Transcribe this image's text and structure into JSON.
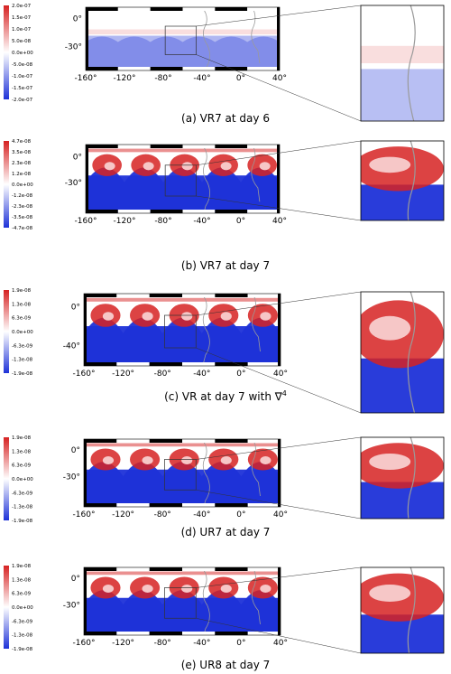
{
  "colors": {
    "high": "#d62222",
    "mid": "#ffffff",
    "low": "#1e32d8",
    "coast": "#9a9a9a",
    "frame": "#000000"
  },
  "x_ticks": [
    "-160°",
    "-120°",
    "-80°",
    "-40°",
    "0°",
    "40°"
  ],
  "panels": [
    {
      "caption": "(a) VR7 at day 6",
      "y_ticks": [
        "0°",
        "-30°"
      ],
      "colorbar_labels": [
        "2.0e-07",
        "1.5e-07",
        "1.0e-07",
        "5.0e-08",
        "0.0e+00",
        "-5.0e-08",
        "-1.0e-07",
        "-1.5e-07",
        "-2.0e-07"
      ],
      "intensity": 0.25
    },
    {
      "caption": "(b) VR7 at day 7",
      "y_ticks": [
        "0°",
        "-30°"
      ],
      "colorbar_labels": [
        "4.7e-08",
        "3.5e-08",
        "2.3e-08",
        "1.2e-08",
        "0.0e+00",
        "-1.2e-08",
        "-2.3e-08",
        "-3.5e-08",
        "-4.7e-08"
      ],
      "intensity": 1.0
    },
    {
      "caption": "(c) VR at day 7 with ∇",
      "caption_sup": "4",
      "y_ticks": [
        "0°",
        "-40°"
      ],
      "colorbar_labels": [
        "1.9e-08",
        "1.3e-08",
        "6.3e-09",
        "0.0e+00",
        "-6.3e-09",
        "-1.3e-08",
        "-1.9e-08"
      ],
      "intensity": 1.0
    },
    {
      "caption": "(d) UR7 at day 7",
      "y_ticks": [
        "0°",
        "-30°"
      ],
      "colorbar_labels": [
        "1.9e-08",
        "1.3e-08",
        "6.3e-09",
        "0.0e+00",
        "-6.3e-09",
        "-1.3e-08",
        "-1.9e-08"
      ],
      "intensity": 1.0
    },
    {
      "caption": "(e) UR8 at day 7",
      "y_ticks": [
        "0°",
        "-30°"
      ],
      "colorbar_labels": [
        "1.9e-08",
        "1.3e-08",
        "6.3e-09",
        "0.0e+00",
        "-6.3e-09",
        "-1.3e-08",
        "-1.9e-08"
      ],
      "intensity": 1.0
    }
  ]
}
